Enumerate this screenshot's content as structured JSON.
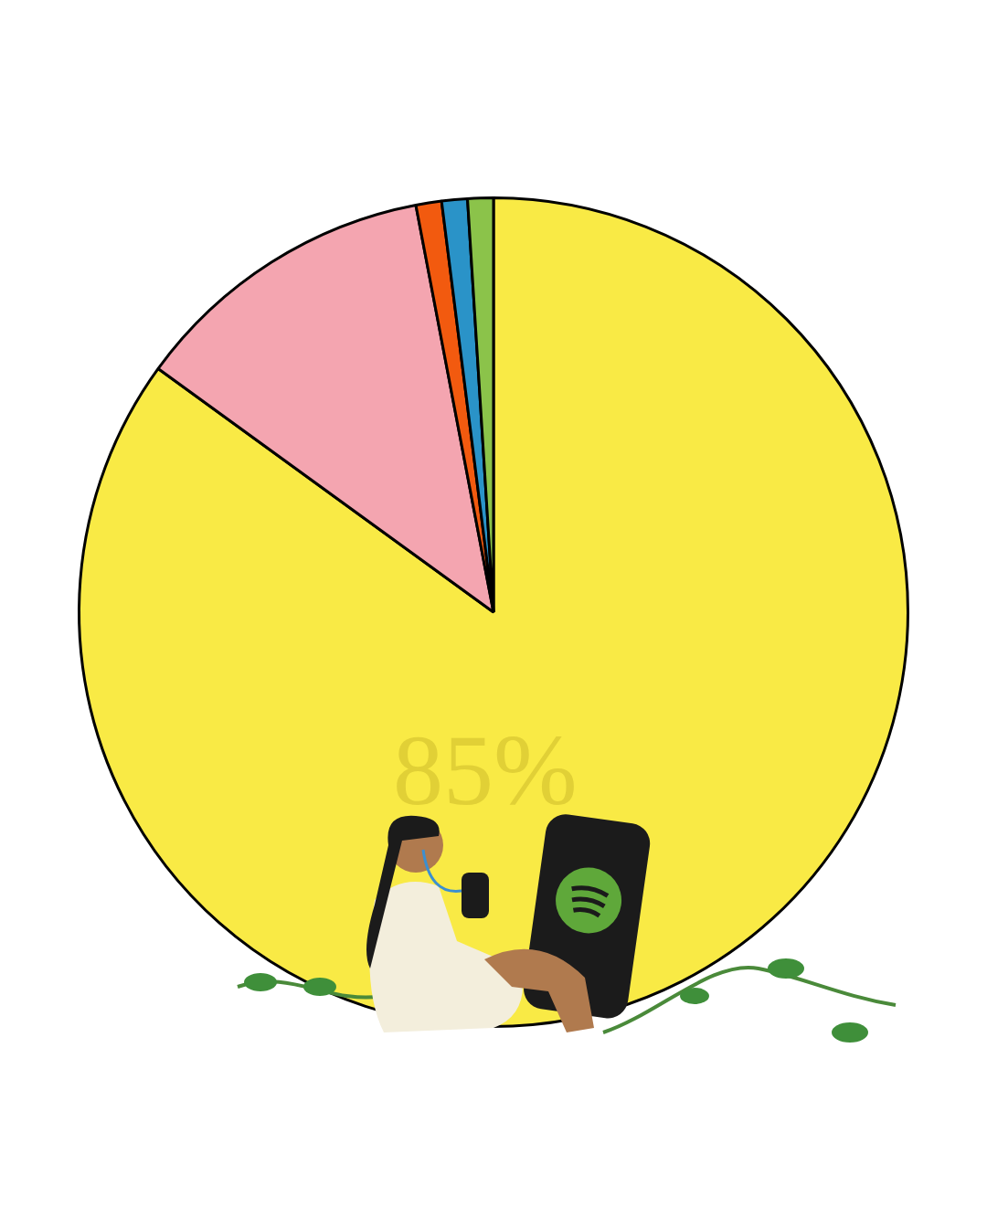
{
  "chart_data": {
    "type": "pie",
    "values": [
      85,
      12,
      1,
      1,
      1
    ],
    "value_labels": [
      "85%",
      null,
      null,
      null,
      null
    ],
    "colors": [
      "#f9ea45",
      "#f4a5b0",
      "#f25a0f",
      "#2a93c8",
      "#8bc34a"
    ]
  }
}
